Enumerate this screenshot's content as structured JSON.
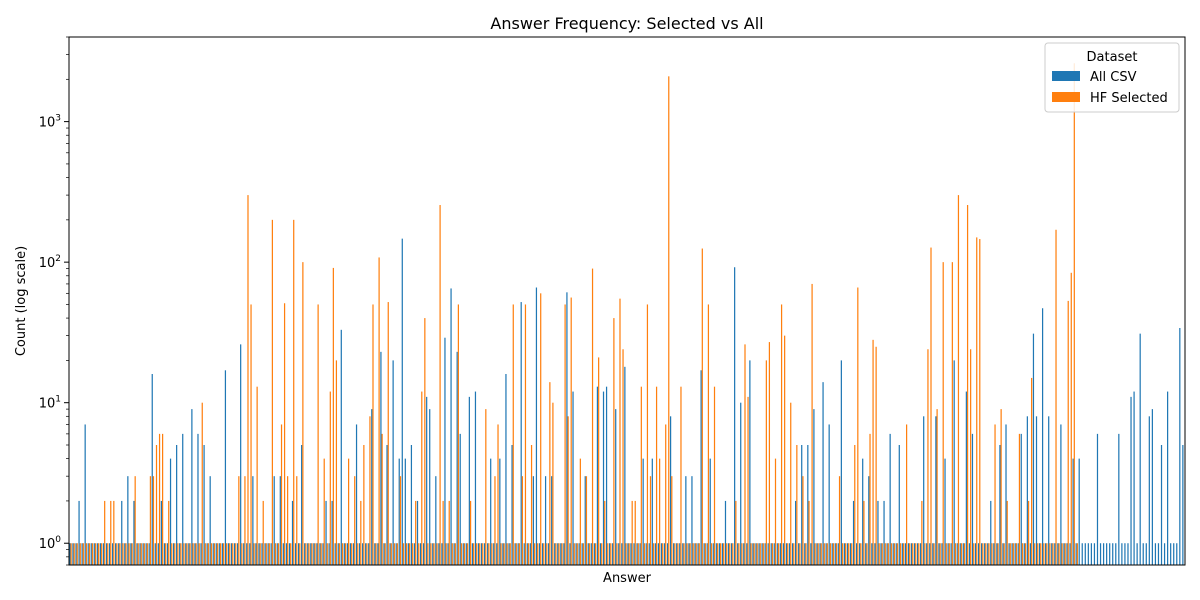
{
  "chart_data": {
    "type": "bar",
    "title": "Answer Frequency: Selected vs All",
    "xlabel": "Answer",
    "ylabel": "Count (log scale)",
    "y_scale": "log",
    "ylim": [
      0.7,
      4000
    ],
    "y_ticks": [
      {
        "value": 1,
        "base": "10",
        "exp": "0"
      },
      {
        "value": 10,
        "base": "10",
        "exp": "1"
      },
      {
        "value": 100,
        "base": "10",
        "exp": "2"
      },
      {
        "value": 1000,
        "base": "10",
        "exp": "3"
      }
    ],
    "x_tick_labels_visible": false,
    "legend": {
      "title": "Dataset",
      "position": "top-right",
      "entries": [
        {
          "name": "All CSV",
          "color": "#1f77b4"
        },
        {
          "name": "HF Selected",
          "color": "#ff7f0e"
        }
      ]
    },
    "series": [
      {
        "name": "All CSV",
        "color": "#1f77b4",
        "values": [
          1,
          1,
          1,
          2,
          1,
          7,
          1,
          1,
          1,
          1,
          1,
          1,
          1,
          1,
          1,
          1,
          1,
          2,
          1,
          3,
          1,
          2,
          1,
          1,
          1,
          1,
          1,
          16,
          1,
          1,
          2,
          1,
          1,
          4,
          1,
          5,
          1,
          6,
          1,
          1,
          9,
          1,
          6,
          1,
          5,
          1,
          3,
          1,
          1,
          1,
          1,
          17,
          1,
          1,
          1,
          1,
          26,
          1,
          1,
          1,
          3,
          1,
          1,
          1,
          1,
          1,
          1,
          3,
          1,
          3,
          1,
          1,
          1,
          2,
          1,
          1,
          5,
          1,
          1,
          1,
          1,
          1,
          1,
          1,
          2,
          1,
          2,
          1,
          1,
          33,
          1,
          1,
          1,
          1,
          7,
          1,
          1,
          1,
          1,
          9,
          1,
          1,
          23,
          1,
          5,
          1,
          20,
          1,
          4,
          147,
          4,
          1,
          5,
          1,
          2,
          1,
          1,
          11,
          9,
          1,
          3,
          1,
          1,
          29,
          1,
          65,
          1,
          23,
          6,
          1,
          1,
          11,
          1,
          12,
          1,
          1,
          1,
          1,
          4,
          1,
          1,
          4,
          1,
          16,
          1,
          5,
          1,
          1,
          52,
          1,
          1,
          1,
          3,
          66,
          1,
          1,
          3,
          1,
          3,
          1,
          1,
          1,
          1,
          61,
          1,
          12,
          1,
          1,
          1,
          3,
          1,
          1,
          1,
          13,
          1,
          12,
          13,
          1,
          1,
          9,
          1,
          1,
          18,
          1,
          1,
          1,
          1,
          1,
          4,
          1,
          1,
          4,
          1,
          1,
          1,
          1,
          1,
          8,
          1,
          1,
          1,
          1,
          3,
          1,
          3,
          1,
          1,
          17,
          1,
          1,
          4,
          1,
          1,
          1,
          1,
          2,
          1,
          1,
          92,
          1,
          10,
          1,
          1,
          20,
          1,
          1,
          1,
          1,
          1,
          1,
          1,
          1,
          1,
          1,
          1,
          1,
          1,
          1,
          2,
          1,
          5,
          1,
          5,
          1,
          9,
          1,
          1,
          14,
          1,
          7,
          1,
          1,
          1,
          20,
          1,
          1,
          1,
          2,
          1,
          1,
          4,
          1,
          3,
          1,
          1,
          2,
          1,
          2,
          1,
          6,
          1,
          1,
          5,
          1,
          1,
          1,
          1,
          1,
          1,
          1,
          8,
          1,
          1,
          1,
          8,
          1,
          1,
          4,
          1,
          1,
          20,
          1,
          1,
          1,
          12,
          1,
          6,
          1,
          1,
          1,
          1,
          1,
          2,
          1,
          1,
          5,
          1,
          7,
          1,
          1,
          1,
          1,
          6,
          1,
          8,
          1,
          31,
          8,
          1,
          47,
          1,
          8,
          1,
          1,
          1,
          7,
          1,
          1,
          1,
          4,
          1,
          4,
          1,
          1,
          1,
          1,
          1,
          6,
          1,
          1,
          1,
          1,
          1,
          1,
          6,
          1,
          1,
          1,
          11,
          12,
          1,
          31,
          1,
          1,
          8,
          9,
          1,
          1,
          5,
          1,
          12,
          1,
          1,
          1,
          34,
          5
        ],
        "note_values_count": 0
      },
      {
        "name": "HF Selected",
        "color": "#ff7f0e",
        "values": [
          1,
          1,
          1,
          1,
          1,
          1,
          1,
          1,
          1,
          1,
          1,
          2,
          1,
          2,
          2,
          1,
          1,
          1,
          1,
          1,
          1,
          3,
          1,
          1,
          1,
          1,
          3,
          3,
          5,
          6,
          6,
          1,
          2,
          1,
          1,
          1,
          1,
          1,
          1,
          1,
          1,
          1,
          1,
          10,
          1,
          1,
          1,
          1,
          1,
          1,
          1,
          1,
          1,
          1,
          1,
          3,
          1,
          3,
          300,
          50,
          1,
          13,
          1,
          2,
          1,
          1,
          200,
          1,
          1,
          7,
          51,
          3,
          1,
          200,
          3,
          1,
          100,
          1,
          1,
          1,
          1,
          50,
          1,
          4,
          1,
          12,
          91,
          20,
          1,
          1,
          1,
          4,
          1,
          3,
          1,
          2,
          5,
          1,
          8,
          50,
          1,
          108,
          6,
          1,
          52,
          1,
          1,
          1,
          3,
          1,
          1,
          1,
          1,
          2,
          1,
          12,
          40,
          1,
          1,
          1,
          1,
          255,
          2,
          1,
          2,
          1,
          1,
          50,
          1,
          1,
          1,
          2,
          1,
          1,
          1,
          1,
          9,
          1,
          1,
          3,
          7,
          1,
          1,
          1,
          1,
          50,
          1,
          1,
          3,
          50,
          1,
          5,
          1,
          1,
          60,
          1,
          1,
          14,
          10,
          1,
          1,
          1,
          50,
          8,
          56,
          1,
          1,
          4,
          1,
          3,
          1,
          90,
          1,
          21,
          1,
          2,
          1,
          1,
          40,
          1,
          55,
          24,
          1,
          1,
          2,
          2,
          1,
          13,
          1,
          50,
          3,
          1,
          13,
          4,
          1,
          7,
          2100,
          3,
          1,
          1,
          13,
          1,
          1,
          1,
          1,
          1,
          1,
          125,
          1,
          50,
          1,
          13,
          1,
          1,
          1,
          1,
          1,
          1,
          2,
          1,
          1,
          26,
          11,
          1,
          1,
          1,
          1,
          1,
          20,
          27,
          1,
          4,
          1,
          50,
          30,
          1,
          10,
          1,
          5,
          1,
          3,
          1,
          2,
          70,
          1,
          1,
          1,
          1,
          1,
          1,
          1,
          1,
          3,
          1,
          1,
          1,
          1,
          5,
          66,
          1,
          2,
          1,
          6,
          28,
          25,
          1,
          1,
          1,
          1,
          1,
          1,
          1,
          1,
          1,
          7,
          1,
          1,
          1,
          1,
          2,
          1,
          24,
          127,
          1,
          9,
          1,
          100,
          1,
          1,
          100,
          1,
          300,
          1,
          1,
          255,
          24,
          1,
          150,
          146,
          1,
          1,
          1,
          1,
          7,
          1,
          9,
          1,
          2,
          1,
          1,
          1,
          6,
          1,
          1,
          2,
          15,
          1,
          1,
          1,
          1,
          1,
          1,
          1,
          170,
          1,
          1,
          1,
          53,
          84,
          2600,
          1
        ]
      }
    ]
  }
}
